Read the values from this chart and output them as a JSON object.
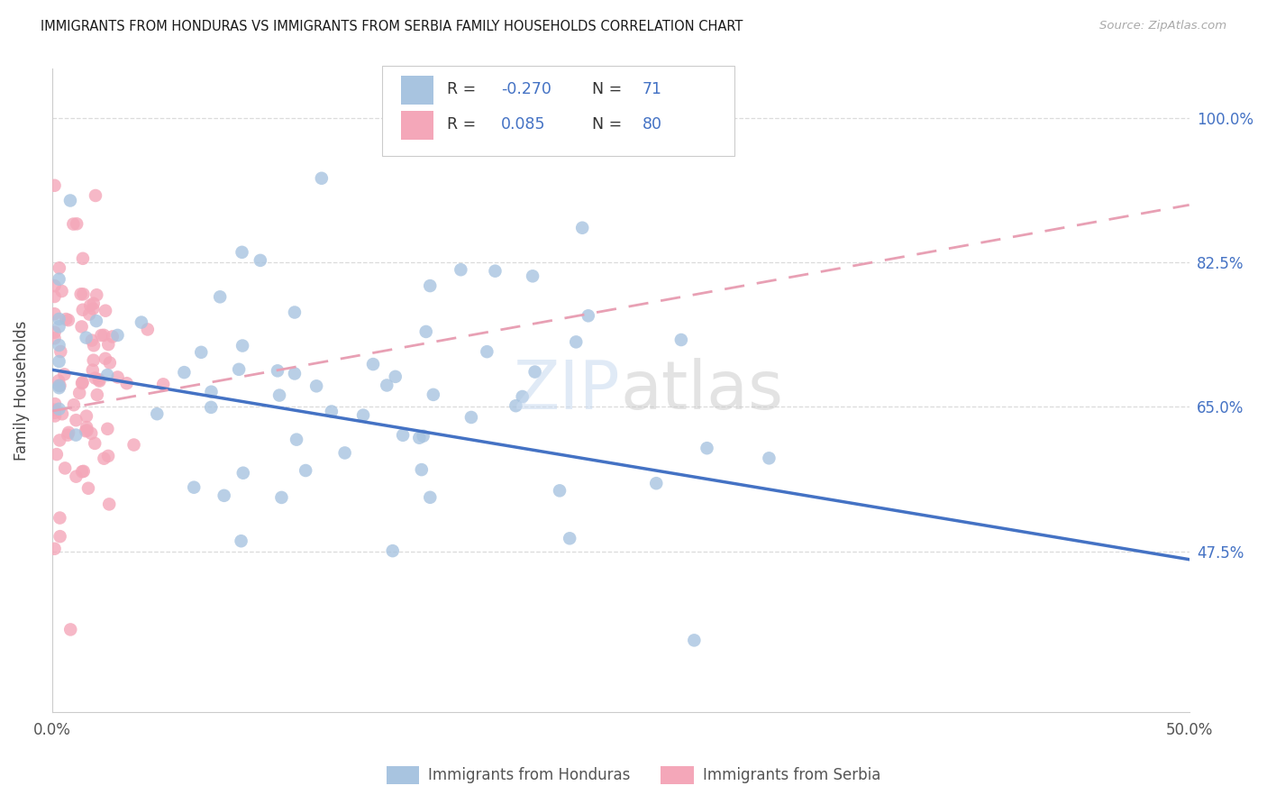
{
  "title": "IMMIGRANTS FROM HONDURAS VS IMMIGRANTS FROM SERBIA FAMILY HOUSEHOLDS CORRELATION CHART",
  "source": "Source: ZipAtlas.com",
  "ylabel": "Family Households",
  "y_tick_labels": [
    "47.5%",
    "65.0%",
    "82.5%",
    "100.0%"
  ],
  "y_tick_values": [
    0.475,
    0.65,
    0.825,
    1.0
  ],
  "x_range": [
    0.0,
    0.5
  ],
  "y_range": [
    0.28,
    1.06
  ],
  "x_ticks": [
    0.0,
    0.1,
    0.2,
    0.3,
    0.4,
    0.5
  ],
  "color_honduras": "#a8c4e0",
  "color_serbia": "#f4a7b9",
  "color_blue_text": "#4472c4",
  "color_trend_blue": "#4472c4",
  "color_trend_pink": "#e8a0b4",
  "background": "#ffffff",
  "grid_color": "#cccccc",
  "title_color": "#1a1a1a",
  "source_color": "#aaaaaa",
  "axis_label_color": "#555555",
  "right_tick_color": "#4472c4",
  "R_honduras": -0.27,
  "N_honduras": 71,
  "R_serbia": 0.085,
  "N_serbia": 80,
  "trend_blue_y0": 0.695,
  "trend_blue_y1": 0.465,
  "trend_pink_y0": 0.645,
  "trend_pink_y1": 0.895
}
